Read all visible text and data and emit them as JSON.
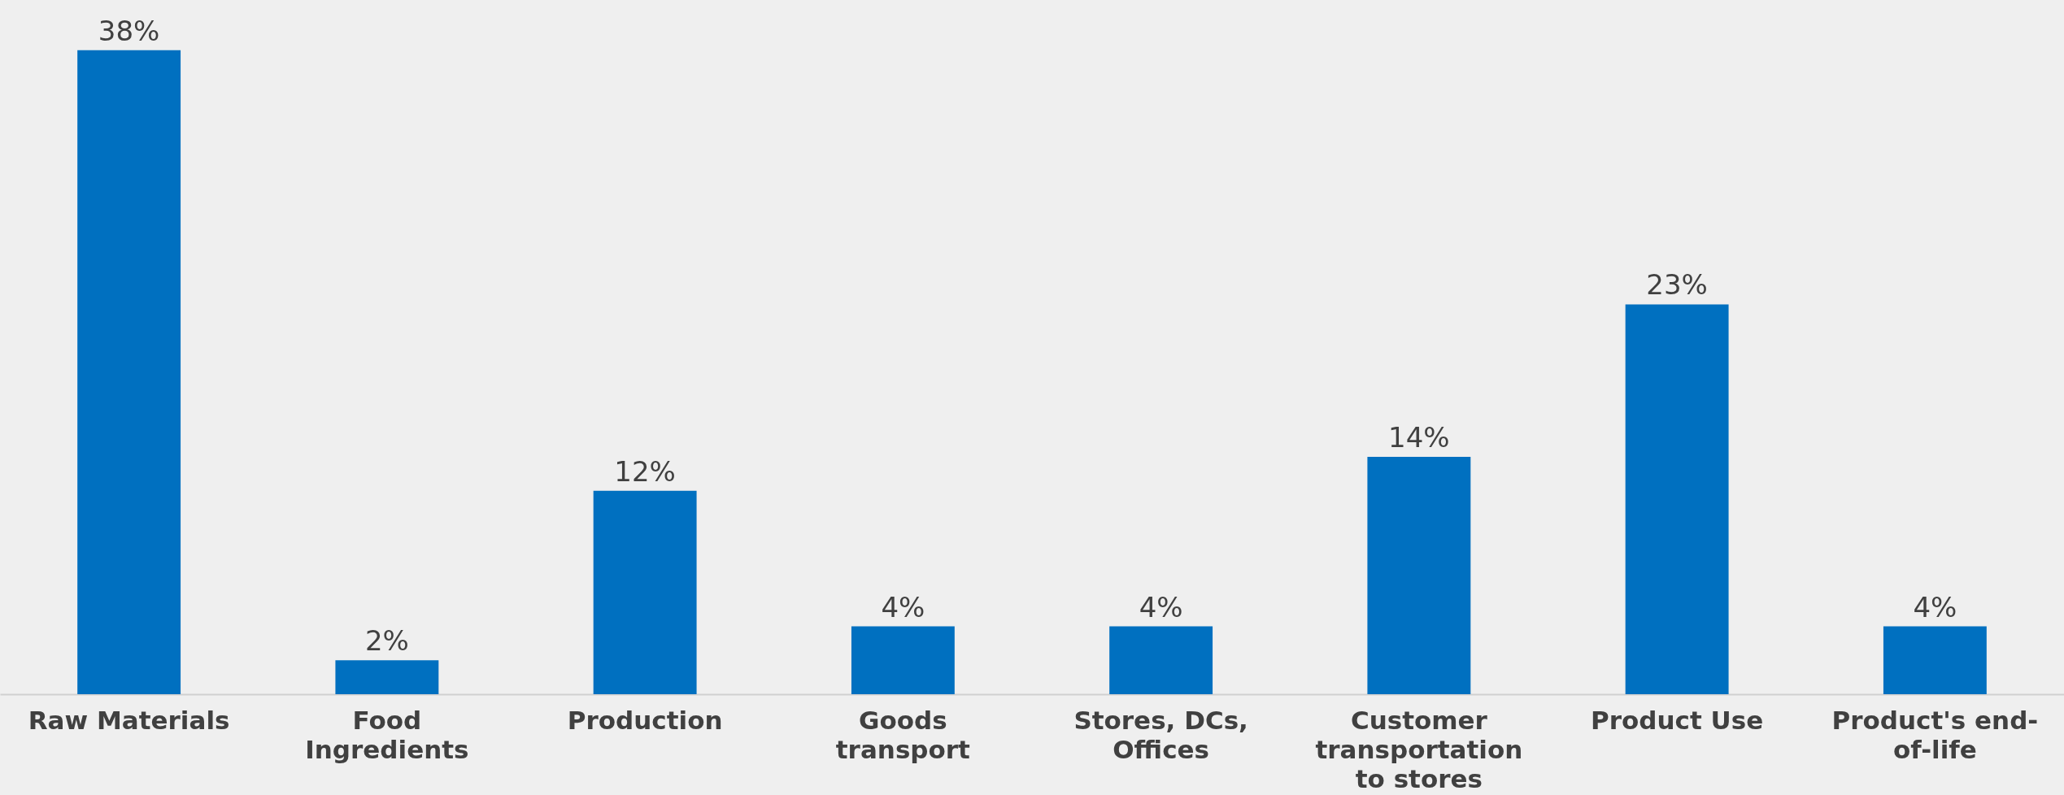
{
  "chart_data": {
    "type": "bar",
    "categories": [
      "Raw Materials",
      "Food Ingredients",
      "Production",
      "Goods transport",
      "Stores, DCs, Offices",
      "Customer transportation to stores",
      "Product Use",
      "Product's end-of-life"
    ],
    "values": [
      38,
      2,
      12,
      4,
      4,
      14,
      23,
      4
    ],
    "value_labels": [
      "38%",
      "2%",
      "12%",
      "4%",
      "4%",
      "14%",
      "23%",
      "4%"
    ],
    "color": "#0070c0",
    "tick_labels": "x"
  }
}
